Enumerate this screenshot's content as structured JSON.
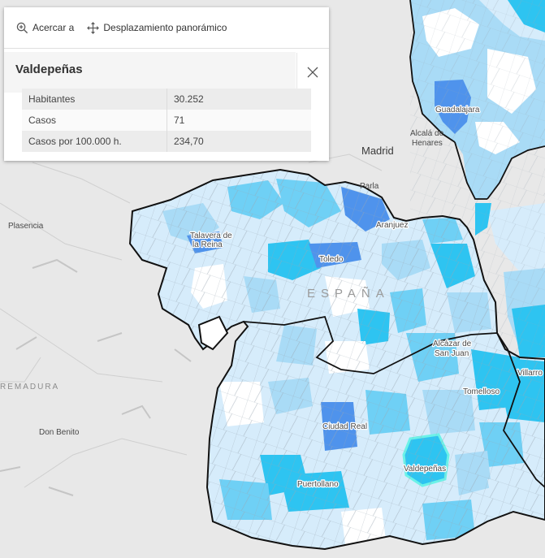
{
  "popup": {
    "actions": {
      "zoom_label": "Acercar a",
      "pan_label": "Desplazamiento panorámico"
    },
    "title": "Valdepeñas",
    "attributes": [
      {
        "name": "Habitantes",
        "value": "30.252"
      },
      {
        "name": "Casos",
        "value": "71"
      },
      {
        "name": "Casos por 100.000 h.",
        "value": "234,70"
      }
    ]
  },
  "map": {
    "labels": {
      "madrid": "Madrid",
      "parla": "Parla",
      "alcala_1": "Alcalá de",
      "alcala_2": "Henares",
      "guadalajara": "Guadalajara",
      "plasencia": "Plasencia",
      "talavera_1": "Talavera de",
      "talavera_2": "la Reina",
      "toledo": "Toledo",
      "aranjuez": "Aranjuez",
      "espana": "ESPAÑA",
      "alcazar_1": "Alcázar de",
      "alcazar_2": "San Juan",
      "villarrobledo": "Villarro",
      "tomelloso": "Tomelloso",
      "ciudad_real": "Ciudad Real",
      "valdepenas": "Valdepeñas",
      "puertollano": "Puertollano",
      "don_benito": "Don Benito",
      "extremadura": "REMADURA"
    },
    "colors": {
      "base": "#e8e8e8",
      "very_low": "#ffffff",
      "low": "#d6ecfb",
      "mid_low": "#a9dbf6",
      "mid": "#6fd0f5",
      "high": "#2ec4f1",
      "very_high": "#4f93ec",
      "selected_outline": "#6cf2e8",
      "region_border": "#111111"
    }
  }
}
